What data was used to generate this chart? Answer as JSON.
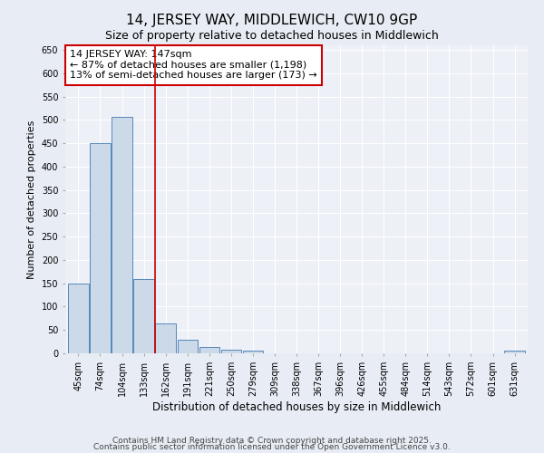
{
  "title": "14, JERSEY WAY, MIDDLEWICH, CW10 9GP",
  "subtitle": "Size of property relative to detached houses in Middlewich",
  "xlabel": "Distribution of detached houses by size in Middlewich",
  "ylabel": "Number of detached properties",
  "bin_labels": [
    "45sqm",
    "74sqm",
    "104sqm",
    "133sqm",
    "162sqm",
    "191sqm",
    "221sqm",
    "250sqm",
    "279sqm",
    "309sqm",
    "338sqm",
    "367sqm",
    "396sqm",
    "426sqm",
    "455sqm",
    "484sqm",
    "514sqm",
    "543sqm",
    "572sqm",
    "601sqm",
    "631sqm"
  ],
  "bar_values": [
    150,
    450,
    507,
    160,
    65,
    30,
    13,
    7,
    5,
    0,
    0,
    0,
    0,
    0,
    0,
    0,
    0,
    0,
    0,
    0,
    5
  ],
  "bar_color": "#ccd9e8",
  "bar_edge_color": "#5588bb",
  "red_line_x": 3.5,
  "annotation_title": "14 JERSEY WAY: 147sqm",
  "annotation_line1": "← 87% of detached houses are smaller (1,198)",
  "annotation_line2": "13% of semi-detached houses are larger (173) →",
  "annotation_box_color": "#cc0000",
  "ylim": [
    0,
    660
  ],
  "yticks": [
    0,
    50,
    100,
    150,
    200,
    250,
    300,
    350,
    400,
    450,
    500,
    550,
    600,
    650
  ],
  "footer1": "Contains HM Land Registry data © Crown copyright and database right 2025.",
  "footer2": "Contains public sector information licensed under the Open Government Licence v3.0.",
  "bg_color": "#e8edf5",
  "plot_bg_color": "#edf0f7",
  "grid_color": "#ffffff",
  "title_fontsize": 11,
  "subtitle_fontsize": 9,
  "xlabel_fontsize": 8.5,
  "ylabel_fontsize": 8,
  "tick_fontsize": 7,
  "ann_fontsize": 8,
  "footer_fontsize": 6.5
}
